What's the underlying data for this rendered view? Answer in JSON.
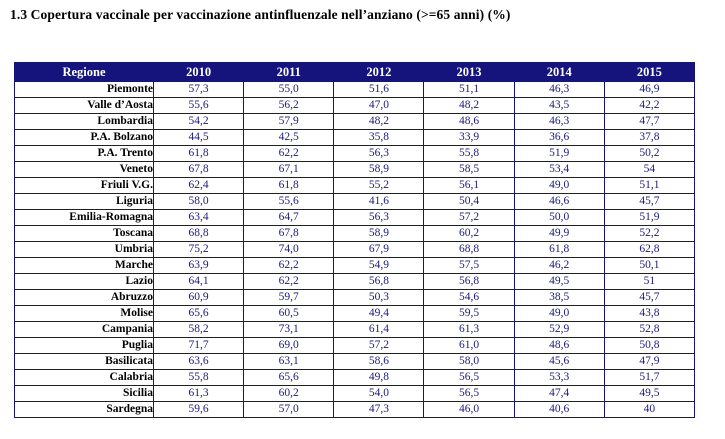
{
  "title": "1.3 Copertura vaccinale per vaccinazione antinfluenzale nell’anziano (>=65 anni) (%)",
  "colors": {
    "header_bg": "#14147c",
    "border": "#14147c",
    "value_text": "#1a1a80",
    "region_text": "#000000"
  },
  "chart_data": {
    "type": "table",
    "title": "1.3 Copertura vaccinale per vaccinazione antinfluenzale nell’anziano (>=65 anni) (%)",
    "columns": [
      "Regione",
      "2010",
      "2011",
      "2012",
      "2013",
      "2014",
      "2015"
    ],
    "rows": [
      [
        "Piemonte",
        "57,3",
        "55,0",
        "51,6",
        "51,1",
        "46,3",
        "46,9"
      ],
      [
        "Valle d’Aosta",
        "55,6",
        "56,2",
        "47,0",
        "48,2",
        "43,5",
        "42,2"
      ],
      [
        "Lombardia",
        "54,2",
        "57,9",
        "48,2",
        "48,6",
        "46,3",
        "47,7"
      ],
      [
        "P.A. Bolzano",
        "44,5",
        "42,5",
        "35,8",
        "33,9",
        "36,6",
        "37,8"
      ],
      [
        "P.A. Trento",
        "61,8",
        "62,2",
        "56,3",
        "55,8",
        "51,9",
        "50,2"
      ],
      [
        "Veneto",
        "67,8",
        "67,1",
        "58,9",
        "58,5",
        "53,4",
        "54"
      ],
      [
        "Friuli V.G.",
        "62,4",
        "61,8",
        "55,2",
        "56,1",
        "49,0",
        "51,1"
      ],
      [
        "Liguria",
        "58,0",
        "55,6",
        "41,6",
        "50,4",
        "46,6",
        "45,7"
      ],
      [
        "Emilia-Romagna",
        "63,4",
        "64,7",
        "56,3",
        "57,2",
        "50,0",
        "51,9"
      ],
      [
        "Toscana",
        "68,8",
        "67,8",
        "58,9",
        "60,2",
        "49,9",
        "52,2"
      ],
      [
        "Umbria",
        "75,2",
        "74,0",
        "67,9",
        "68,8",
        "61,8",
        "62,8"
      ],
      [
        "Marche",
        "63,9",
        "62,2",
        "54,9",
        "57,5",
        "46,2",
        "50,1"
      ],
      [
        "Lazio",
        "64,1",
        "62,2",
        "56,8",
        "56,8",
        "49,5",
        "51"
      ],
      [
        "Abruzzo",
        "60,9",
        "59,7",
        "50,3",
        "54,6",
        "38,5",
        "45,7"
      ],
      [
        "Molise",
        "65,6",
        "60,5",
        "49,4",
        "59,5",
        "49,0",
        "43,8"
      ],
      [
        "Campania",
        "58,2",
        "73,1",
        "61,4",
        "61,3",
        "52,9",
        "52,8"
      ],
      [
        "Puglia",
        "71,7",
        "69,0",
        "57,2",
        "61,0",
        "48,6",
        "50,8"
      ],
      [
        "Basilicata",
        "63,6",
        "63,1",
        "58,6",
        "58,0",
        "45,6",
        "47,9"
      ],
      [
        "Calabria",
        "55,8",
        "65,6",
        "49,8",
        "56,5",
        "53,3",
        "51,7"
      ],
      [
        "Sicilia",
        "61,3",
        "60,2",
        "54,0",
        "56,5",
        "47,4",
        "49,5"
      ],
      [
        "Sardegna",
        "59,6",
        "57,0",
        "47,3",
        "46,0",
        "40,6",
        "40"
      ]
    ]
  }
}
